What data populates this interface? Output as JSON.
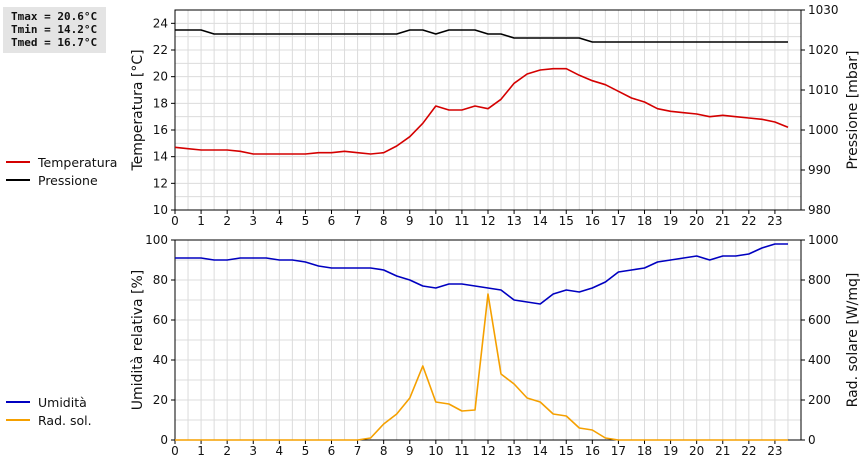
{
  "stats": {
    "tmax": "Tmax = 20.6°C",
    "tmin": "Tmin = 14.2°C",
    "tmed": "Tmed = 16.7°C"
  },
  "legend_top": [
    {
      "label": "Temperatura",
      "color": "#d40000"
    },
    {
      "label": "Pressione",
      "color": "#000000"
    }
  ],
  "legend_bottom": [
    {
      "label": "Umidità",
      "color": "#0000c0"
    },
    {
      "label": "Rad. sol.",
      "color": "#f5a000"
    }
  ],
  "chart_data": [
    {
      "type": "line",
      "grid": true,
      "x_range": [
        0,
        24
      ],
      "x_ticks": [
        "0",
        "1",
        "2",
        "3",
        "4",
        "5",
        "6",
        "7",
        "8",
        "9",
        "10",
        "11",
        "12",
        "13",
        "14",
        "15",
        "16",
        "17",
        "18",
        "19",
        "20",
        "21",
        "22",
        "23"
      ],
      "x": [
        0,
        0.5,
        1,
        1.5,
        2,
        2.5,
        3,
        3.5,
        4,
        4.5,
        5,
        5.5,
        6,
        6.5,
        7,
        7.5,
        8,
        8.5,
        9,
        9.5,
        10,
        10.5,
        11,
        11.5,
        12,
        12.5,
        13,
        13.5,
        14,
        14.5,
        15,
        15.5,
        16,
        16.5,
        17,
        17.5,
        18,
        18.5,
        19,
        19.5,
        20,
        20.5,
        21,
        21.5,
        22,
        22.5,
        23,
        23.5
      ],
      "ylabel": "Temperatura [°C]",
      "ylim": [
        10,
        25
      ],
      "y_ticks": [
        "10",
        "12",
        "14",
        "16",
        "18",
        "20",
        "22",
        "24"
      ],
      "y2label": "Pressione [mbar]",
      "y2lim": [
        980,
        1030
      ],
      "y2_ticks": [
        "980",
        "990",
        "1000",
        "1010",
        "1020",
        "1030"
      ],
      "series": [
        {
          "name": "Temperatura",
          "axis": "left",
          "color": "#d40000",
          "values": [
            14.7,
            14.6,
            14.5,
            14.5,
            14.5,
            14.4,
            14.2,
            14.2,
            14.2,
            14.2,
            14.2,
            14.3,
            14.3,
            14.4,
            14.3,
            14.2,
            14.3,
            14.8,
            15.5,
            16.5,
            17.8,
            17.5,
            17.5,
            17.8,
            17.6,
            18.3,
            19.5,
            20.2,
            20.5,
            20.6,
            20.6,
            20.1,
            19.7,
            19.4,
            18.9,
            18.4,
            18.1,
            17.6,
            17.4,
            17.3,
            17.2,
            17.0,
            17.1,
            17.0,
            16.9,
            16.8,
            16.6,
            16.2
          ]
        },
        {
          "name": "Pressione",
          "axis": "right",
          "color": "#000000",
          "values": [
            1025,
            1025,
            1025,
            1024,
            1024,
            1024,
            1024,
            1024,
            1024,
            1024,
            1024,
            1024,
            1024,
            1024,
            1024,
            1024,
            1024,
            1024,
            1025,
            1025,
            1024,
            1025,
            1025,
            1025,
            1024,
            1024,
            1023,
            1023,
            1023,
            1023,
            1023,
            1023,
            1022,
            1022,
            1022,
            1022,
            1022,
            1022,
            1022,
            1022,
            1022,
            1022,
            1022,
            1022,
            1022,
            1022,
            1022,
            1022
          ]
        }
      ]
    },
    {
      "type": "line",
      "grid": true,
      "x_range": [
        0,
        24
      ],
      "x_ticks": [
        "0",
        "1",
        "2",
        "3",
        "4",
        "5",
        "6",
        "7",
        "8",
        "9",
        "10",
        "11",
        "12",
        "13",
        "14",
        "15",
        "16",
        "17",
        "18",
        "19",
        "20",
        "21",
        "22",
        "23"
      ],
      "x": [
        0,
        0.5,
        1,
        1.5,
        2,
        2.5,
        3,
        3.5,
        4,
        4.5,
        5,
        5.5,
        6,
        6.5,
        7,
        7.5,
        8,
        8.5,
        9,
        9.5,
        10,
        10.5,
        11,
        11.5,
        12,
        12.5,
        13,
        13.5,
        14,
        14.5,
        15,
        15.5,
        16,
        16.5,
        17,
        17.5,
        18,
        18.5,
        19,
        19.5,
        20,
        20.5,
        21,
        21.5,
        22,
        22.5,
        23,
        23.5
      ],
      "ylabel": "Umidità relativa [%]",
      "ylim": [
        0,
        100
      ],
      "y_ticks": [
        "0",
        "20",
        "40",
        "60",
        "80",
        "100"
      ],
      "y2label": "Rad. solare [W/mq]",
      "y2lim": [
        0,
        1000
      ],
      "y2_ticks": [
        "0",
        "200",
        "400",
        "600",
        "800",
        "1000"
      ],
      "series": [
        {
          "name": "Umidità",
          "axis": "left",
          "color": "#0000c0",
          "values": [
            91,
            91,
            91,
            90,
            90,
            91,
            91,
            91,
            90,
            90,
            89,
            87,
            86,
            86,
            86,
            86,
            85,
            82,
            80,
            77,
            76,
            78,
            78,
            77,
            76,
            75,
            70,
            69,
            68,
            73,
            75,
            74,
            76,
            79,
            84,
            85,
            86,
            89,
            90,
            91,
            92,
            90,
            92,
            92,
            93,
            96,
            98,
            98
          ]
        },
        {
          "name": "Rad. sol.",
          "axis": "right",
          "color": "#f5a000",
          "values": [
            0,
            0,
            0,
            0,
            0,
            0,
            0,
            0,
            0,
            0,
            0,
            0,
            0,
            0,
            0,
            10,
            80,
            130,
            210,
            370,
            190,
            180,
            145,
            150,
            730,
            330,
            280,
            210,
            190,
            130,
            120,
            60,
            50,
            10,
            0,
            0,
            0,
            0,
            0,
            0,
            0,
            0,
            0,
            0,
            0,
            0,
            0,
            0
          ]
        }
      ]
    }
  ]
}
